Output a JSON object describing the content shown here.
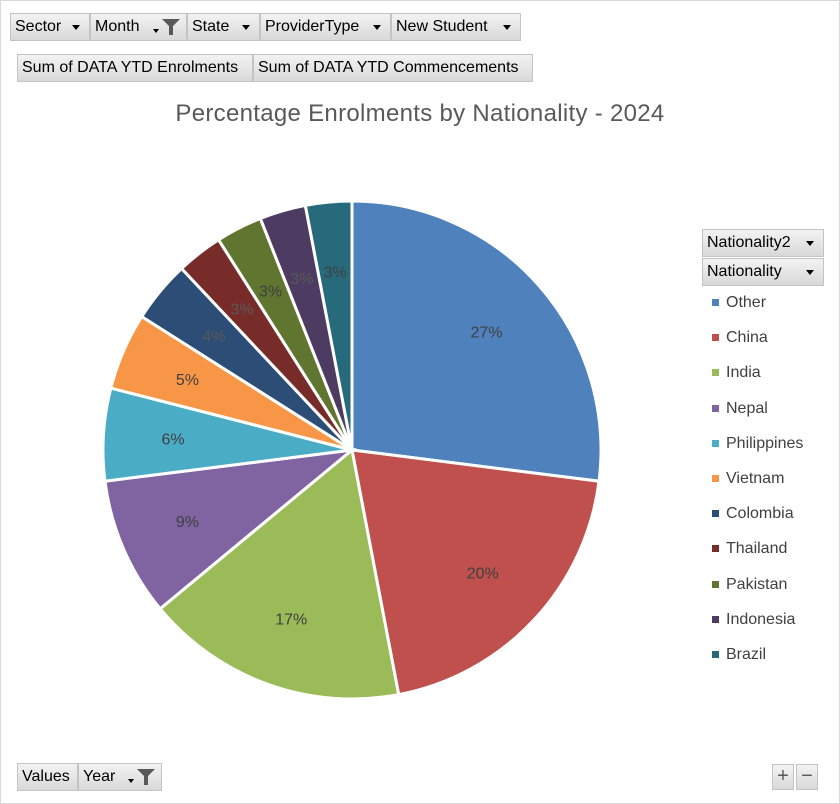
{
  "filters": {
    "sector": "Sector",
    "month": "Month",
    "state": "State",
    "provider_type": "ProviderType",
    "new_student": "New Student"
  },
  "values_fields": {
    "enrolments": "Sum of DATA YTD Enrolments",
    "commencements": "Sum of DATA YTD Commencements"
  },
  "axis_fields": {
    "nationality2": "Nationality2",
    "nationality": "Nationality"
  },
  "bottom_fields": {
    "values": "Values",
    "year": "Year"
  },
  "zoom": {
    "plus": "+",
    "minus": "−"
  },
  "chart_data": {
    "type": "pie",
    "title": "Percentage Enrolments by Nationality - 2024",
    "categories": [
      "Other",
      "China",
      "India",
      "Nepal",
      "Philippines",
      "Vietnam",
      "Colombia",
      "Thailand",
      "Pakistan",
      "Indonesia",
      "Brazil"
    ],
    "values": [
      27,
      20,
      17,
      9,
      6,
      5,
      4,
      3,
      3,
      3,
      3
    ],
    "labels": [
      "27%",
      "20%",
      "17%",
      "9%",
      "6%",
      "5%",
      "4%",
      "3%",
      "3%",
      "3%",
      "3%"
    ],
    "colors": [
      "#4f81bd",
      "#c0504d",
      "#9bbb59",
      "#8064a2",
      "#4bacc6",
      "#f79646",
      "#2c4d75",
      "#772c2a",
      "#5f7530",
      "#4d3b62",
      "#276a7c"
    ],
    "label_colors": [
      "#404040",
      "#404040",
      "#404040",
      "#404040",
      "#404040",
      "#404040",
      "#595959",
      "#595959",
      "#404040",
      "#595959",
      "#404040"
    ],
    "legend_position": "right",
    "start_angle_deg": 0,
    "direction": "clockwise"
  }
}
